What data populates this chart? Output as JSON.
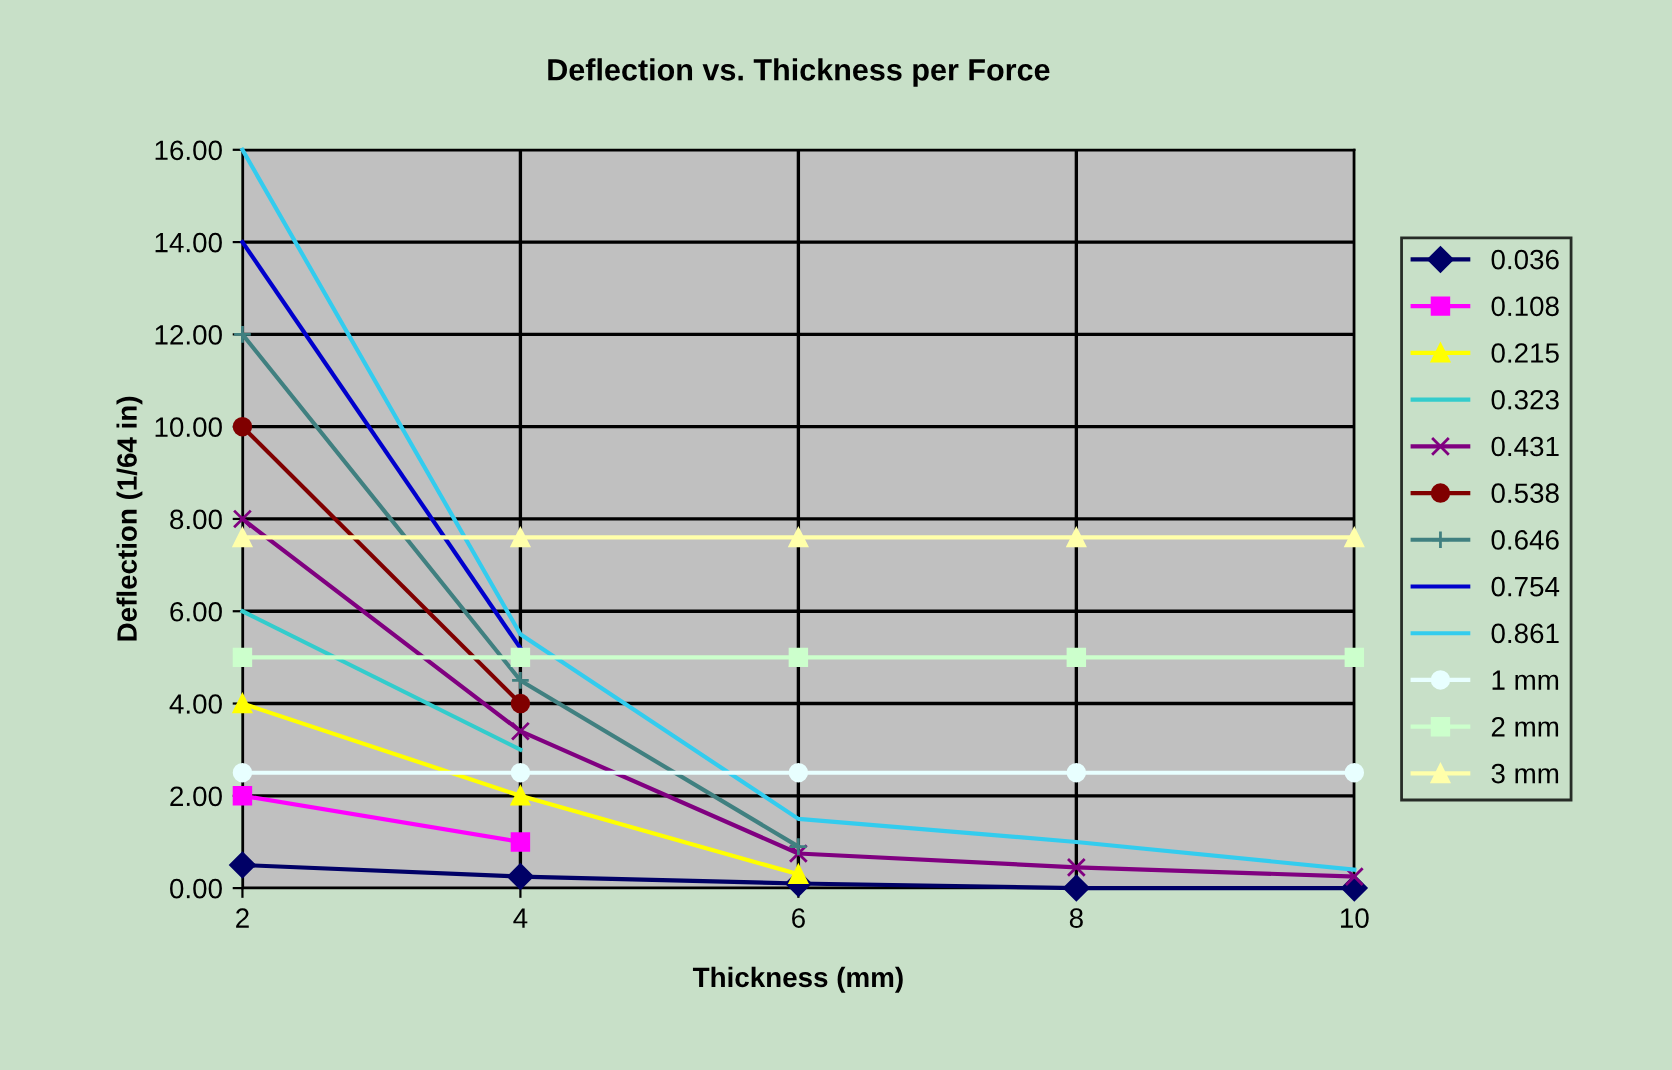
{
  "chart_data": {
    "type": "line",
    "title": "Deflection vs. Thickness per Force",
    "xlabel": "Thickness (mm)",
    "ylabel": "Deflection (1/64 in)",
    "categories": [
      "2",
      "4",
      "6",
      "8",
      "10"
    ],
    "series": [
      {
        "name": "0.036",
        "color": "#000066",
        "marker": "diamond",
        "values": [
          0.5,
          0.25,
          0.1,
          0,
          0
        ]
      },
      {
        "name": "0.108",
        "color": "#ff00ff",
        "marker": "square",
        "values": [
          2,
          1,
          null,
          null,
          null
        ]
      },
      {
        "name": "0.215",
        "color": "#ffff00",
        "marker": "triangle",
        "values": [
          4,
          2,
          0.3,
          null,
          null
        ]
      },
      {
        "name": "0.323",
        "color": "#33cccc",
        "marker": "none",
        "values": [
          6,
          3,
          null,
          null,
          null
        ]
      },
      {
        "name": "0.431",
        "color": "#800080",
        "marker": "cross",
        "values": [
          8,
          3.4,
          0.75,
          0.45,
          0.25
        ]
      },
      {
        "name": "0.538",
        "color": "#800000",
        "marker": "circle",
        "values": [
          10,
          4,
          null,
          null,
          null
        ]
      },
      {
        "name": "0.646",
        "color": "#408080",
        "marker": "plus",
        "values": [
          12,
          4.5,
          0.9,
          null,
          null
        ]
      },
      {
        "name": "0.754",
        "color": "#0000cc",
        "marker": "none",
        "values": [
          14,
          5.2,
          null,
          null,
          null
        ]
      },
      {
        "name": "0.861",
        "color": "#33ccee",
        "marker": "none",
        "values": [
          16,
          5.5,
          1.5,
          1.0,
          0.4
        ]
      },
      {
        "name": "1 mm",
        "color": "#e8ffff",
        "marker": "circle",
        "values": [
          2.5,
          2.5,
          2.5,
          2.5,
          2.5
        ]
      },
      {
        "name": "2 mm",
        "color": "#ccffcc",
        "marker": "square",
        "values": [
          5,
          5,
          5,
          5,
          5
        ]
      },
      {
        "name": "3 mm",
        "color": "#ffffaa",
        "marker": "triangle",
        "values": [
          7.6,
          7.6,
          7.6,
          7.6,
          7.6
        ]
      }
    ],
    "ylim": [
      0,
      16
    ],
    "yticks": [
      {
        "value": 0,
        "label": "0.00"
      },
      {
        "value": 2,
        "label": "2.00"
      },
      {
        "value": 4,
        "label": "4.00"
      },
      {
        "value": 6,
        "label": "6.00"
      },
      {
        "value": 8,
        "label": "8.00"
      },
      {
        "value": 10,
        "label": "10.00"
      },
      {
        "value": 12,
        "label": "12.00"
      },
      {
        "value": 14,
        "label": "14.00"
      },
      {
        "value": 16,
        "label": "16.00"
      }
    ],
    "grid": true,
    "legend": "right"
  }
}
